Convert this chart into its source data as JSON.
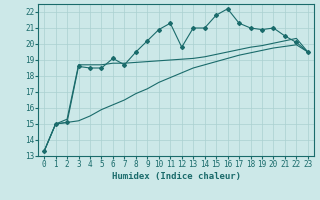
{
  "xlabel": "Humidex (Indice chaleur)",
  "ylabel": "",
  "x": [
    0,
    1,
    2,
    3,
    4,
    5,
    6,
    7,
    8,
    9,
    10,
    11,
    12,
    13,
    14,
    15,
    16,
    17,
    18,
    19,
    20,
    21,
    22,
    23
  ],
  "line1": [
    13.3,
    15.0,
    15.1,
    18.6,
    18.5,
    18.5,
    19.1,
    18.7,
    19.5,
    20.2,
    20.9,
    21.3,
    19.8,
    21.0,
    21.0,
    21.8,
    22.2,
    21.3,
    21.0,
    20.9,
    21.0,
    20.5,
    20.1,
    19.5
  ],
  "line2": [
    13.3,
    15.0,
    15.3,
    18.7,
    18.7,
    18.7,
    18.8,
    18.8,
    18.85,
    18.9,
    18.95,
    19.0,
    19.05,
    19.1,
    19.2,
    19.35,
    19.5,
    19.65,
    19.8,
    19.9,
    20.05,
    20.2,
    20.35,
    19.5
  ],
  "line3": [
    13.3,
    15.0,
    15.1,
    15.2,
    15.5,
    15.9,
    16.2,
    16.5,
    16.9,
    17.2,
    17.6,
    17.9,
    18.2,
    18.5,
    18.7,
    18.9,
    19.1,
    19.3,
    19.45,
    19.6,
    19.75,
    19.85,
    19.95,
    19.5
  ],
  "color": "#1a6b6b",
  "bg_color": "#cce8e8",
  "grid_color": "#aad0d0",
  "ylim": [
    13,
    22.5
  ],
  "xlim": [
    -0.5,
    23.5
  ],
  "yticks": [
    13,
    14,
    15,
    16,
    17,
    18,
    19,
    20,
    21,
    22
  ],
  "xticks": [
    0,
    1,
    2,
    3,
    4,
    5,
    6,
    7,
    8,
    9,
    10,
    11,
    12,
    13,
    14,
    15,
    16,
    17,
    18,
    19,
    20,
    21,
    22,
    23
  ],
  "marker": "D",
  "markersize": 2.0,
  "linewidth": 0.8,
  "label_fontsize": 6.5,
  "tick_fontsize": 5.5
}
